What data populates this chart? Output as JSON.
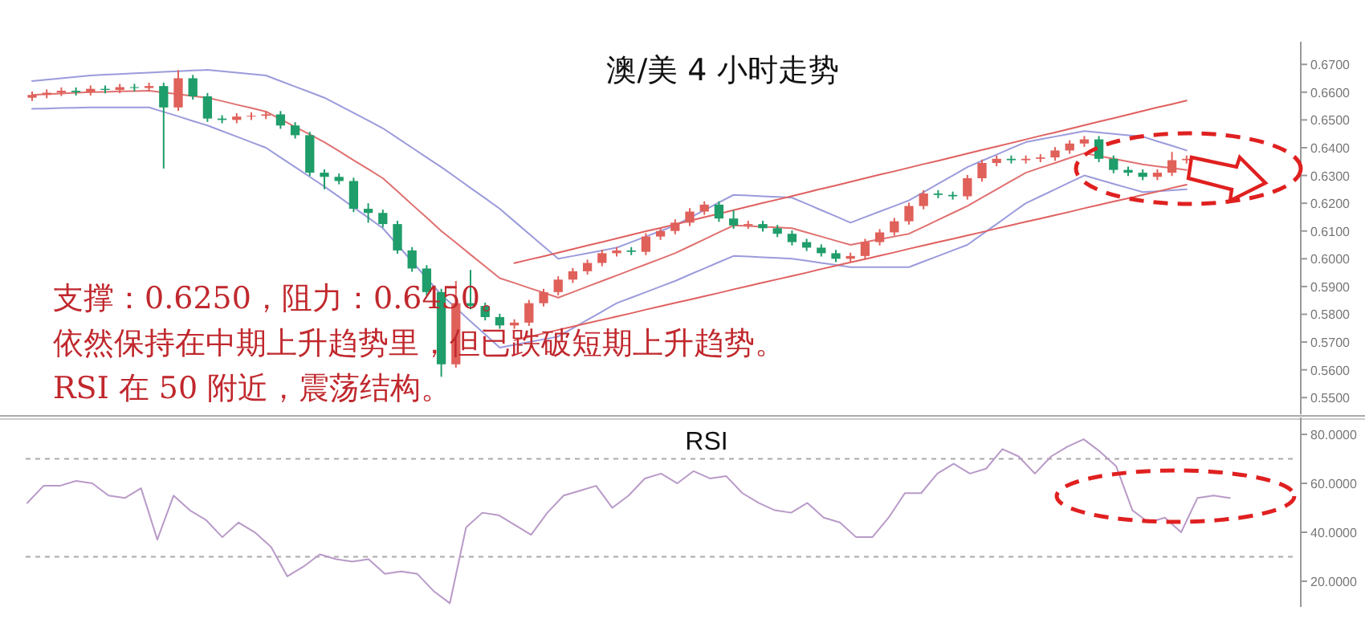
{
  "chart_data": [
    {
      "type": "candlestick",
      "title": "澳/美 4 小时走势",
      "tick_labels": "y",
      "categories": [
        null,
        null,
        null,
        null,
        null,
        null,
        null,
        null,
        null,
        null,
        null,
        null,
        null,
        null,
        null,
        null,
        null,
        null,
        null,
        null,
        null,
        null,
        null,
        null,
        null,
        null,
        null,
        null,
        null,
        null,
        null,
        null,
        null,
        null,
        null,
        null,
        null,
        null,
        null,
        null,
        null,
        null,
        null,
        null,
        null,
        null,
        null,
        null,
        null,
        null,
        null,
        null,
        null,
        null,
        null,
        null,
        null,
        null,
        null,
        null,
        null,
        null,
        null,
        null,
        null,
        null,
        null,
        null,
        null,
        null,
        null,
        null,
        null,
        null,
        null,
        null,
        null,
        null,
        null,
        null
      ],
      "ohlc": [
        [
          0.658,
          0.6602,
          0.6568,
          0.659
        ],
        [
          0.659,
          0.661,
          0.6578,
          0.6598
        ],
        [
          0.6598,
          0.6617,
          0.6586,
          0.6605
        ],
        [
          0.6605,
          0.6617,
          0.6588,
          0.66
        ],
        [
          0.66,
          0.6624,
          0.6588,
          0.6612
        ],
        [
          0.6612,
          0.6624,
          0.6596,
          0.6608
        ],
        [
          0.6608,
          0.663,
          0.6596,
          0.6618
        ],
        [
          0.6618,
          0.663,
          0.6603,
          0.6615
        ],
        [
          0.6615,
          0.6634,
          0.6603,
          0.6622
        ],
        [
          0.6622,
          0.6634,
          0.6325,
          0.6545
        ],
        [
          0.6545,
          0.668,
          0.6533,
          0.665
        ],
        [
          0.665,
          0.6662,
          0.6573,
          0.6585
        ],
        [
          0.6585,
          0.6597,
          0.6493,
          0.6505
        ],
        [
          0.6505,
          0.6517,
          0.6488,
          0.65
        ],
        [
          0.65,
          0.6524,
          0.6488,
          0.6512
        ],
        [
          0.6512,
          0.6527,
          0.65,
          0.6515
        ],
        [
          0.6515,
          0.6532,
          0.6503,
          0.652
        ],
        [
          0.652,
          0.6532,
          0.6468,
          0.648
        ],
        [
          0.648,
          0.6492,
          0.6433,
          0.6445
        ],
        [
          0.6445,
          0.6457,
          0.6298,
          0.631
        ],
        [
          0.631,
          0.6322,
          0.625,
          0.6295
        ],
        [
          0.6295,
          0.6307,
          0.6268,
          0.628
        ],
        [
          0.628,
          0.6292,
          0.6168,
          0.618
        ],
        [
          0.618,
          0.62,
          0.613,
          0.6165
        ],
        [
          0.6165,
          0.6177,
          0.6113,
          0.6125
        ],
        [
          0.6125,
          0.6137,
          0.6018,
          0.603
        ],
        [
          0.603,
          0.6042,
          0.5953,
          0.5965
        ],
        [
          0.5965,
          0.5977,
          0.5868,
          0.588
        ],
        [
          0.588,
          0.5892,
          0.5575,
          0.562
        ],
        [
          0.562,
          0.592,
          0.5608,
          0.584
        ],
        [
          0.584,
          0.596,
          0.5818,
          0.583
        ],
        [
          0.583,
          0.5842,
          0.5778,
          0.579
        ],
        [
          0.579,
          0.5802,
          0.5748,
          0.576
        ],
        [
          0.576,
          0.5782,
          0.5748,
          0.577
        ],
        [
          0.577,
          0.5852,
          0.5758,
          0.584
        ],
        [
          0.584,
          0.5892,
          0.5828,
          0.588
        ],
        [
          0.588,
          0.5937,
          0.5868,
          0.5925
        ],
        [
          0.5925,
          0.5967,
          0.5913,
          0.5955
        ],
        [
          0.5955,
          0.5997,
          0.5943,
          0.5985
        ],
        [
          0.5985,
          0.6032,
          0.5973,
          0.602
        ],
        [
          0.602,
          0.6042,
          0.6008,
          0.603
        ],
        [
          0.603,
          0.6042,
          0.6013,
          0.6025
        ],
        [
          0.6025,
          0.6092,
          0.6013,
          0.608
        ],
        [
          0.608,
          0.6112,
          0.6068,
          0.61
        ],
        [
          0.61,
          0.6142,
          0.6088,
          0.613
        ],
        [
          0.613,
          0.6182,
          0.6118,
          0.617
        ],
        [
          0.617,
          0.6207,
          0.6158,
          0.6195
        ],
        [
          0.6195,
          0.6207,
          0.6133,
          0.6145
        ],
        [
          0.6145,
          0.6175,
          0.6108,
          0.612
        ],
        [
          0.612,
          0.6137,
          0.6108,
          0.6125
        ],
        [
          0.6125,
          0.6137,
          0.6098,
          0.611
        ],
        [
          0.611,
          0.6122,
          0.6078,
          0.609
        ],
        [
          0.609,
          0.6102,
          0.6048,
          0.606
        ],
        [
          0.606,
          0.6072,
          0.6028,
          0.604
        ],
        [
          0.604,
          0.6052,
          0.6008,
          0.602
        ],
        [
          0.602,
          0.6032,
          0.5988,
          0.6
        ],
        [
          0.6,
          0.6022,
          0.5988,
          0.601
        ],
        [
          0.601,
          0.6072,
          0.5998,
          0.606
        ],
        [
          0.606,
          0.6107,
          0.6048,
          0.6095
        ],
        [
          0.6095,
          0.6147,
          0.6083,
          0.6135
        ],
        [
          0.6135,
          0.6202,
          0.6123,
          0.619
        ],
        [
          0.619,
          0.6247,
          0.6178,
          0.6235
        ],
        [
          0.6235,
          0.6247,
          0.6218,
          0.623
        ],
        [
          0.623,
          0.6242,
          0.6213,
          0.6225
        ],
        [
          0.6225,
          0.6302,
          0.6213,
          0.629
        ],
        [
          0.629,
          0.6357,
          0.6278,
          0.6345
        ],
        [
          0.6345,
          0.6372,
          0.6333,
          0.636
        ],
        [
          0.636,
          0.6372,
          0.6343,
          0.6355
        ],
        [
          0.6355,
          0.6372,
          0.6343,
          0.636
        ],
        [
          0.636,
          0.6377,
          0.6348,
          0.6365
        ],
        [
          0.6365,
          0.6402,
          0.6353,
          0.639
        ],
        [
          0.639,
          0.6427,
          0.6378,
          0.6415
        ],
        [
          0.6415,
          0.6442,
          0.6403,
          0.643
        ],
        [
          0.643,
          0.6442,
          0.6348,
          0.636
        ],
        [
          0.636,
          0.6372,
          0.6308,
          0.632
        ],
        [
          0.632,
          0.6332,
          0.6298,
          0.631
        ],
        [
          0.631,
          0.6322,
          0.6283,
          0.6295
        ],
        [
          0.6295,
          0.6322,
          0.6283,
          0.631
        ],
        [
          0.631,
          0.6385,
          0.6298,
          0.6355
        ],
        [
          0.6355,
          0.6372,
          0.6343,
          0.636
        ]
      ],
      "series": [
        {
          "type": "line",
          "color": "#e07070",
          "values": [
            0.659,
            0.6593,
            0.6595,
            0.6598,
            0.66,
            0.6601,
            0.6603,
            0.6604,
            0.6605,
            0.6599,
            0.6593,
            0.6586,
            0.658,
            0.6568,
            0.6555,
            0.6543,
            0.653,
            0.6503,
            0.6475,
            0.6448,
            0.642,
            0.6388,
            0.6355,
            0.6323,
            0.629,
            0.6243,
            0.6195,
            0.6148,
            0.61,
            0.6058,
            0.6015,
            0.5973,
            0.593,
            0.5913,
            0.5895,
            0.5878,
            0.586,
            0.588,
            0.59,
            0.592,
            0.594,
            0.596,
            0.598,
            0.6,
            0.602,
            0.6045,
            0.607,
            0.6095,
            0.612,
            0.6118,
            0.6115,
            0.6113,
            0.611,
            0.6095,
            0.608,
            0.6065,
            0.605,
            0.606,
            0.607,
            0.608,
            0.609,
            0.6115,
            0.614,
            0.6165,
            0.619,
            0.622,
            0.625,
            0.628,
            0.631,
            0.6328,
            0.6345,
            0.6363,
            0.638,
            0.637,
            0.636,
            0.635,
            0.634,
            0.6333,
            0.6327,
            0.632
          ]
        },
        {
          "type": "line",
          "color": "#9b9bdc",
          "values": [
            0.664,
            0.6645,
            0.665,
            0.6655,
            0.666,
            0.6663,
            0.6665,
            0.6668,
            0.667,
            0.6673,
            0.6675,
            0.6678,
            0.668,
            0.6675,
            0.667,
            0.6665,
            0.666,
            0.664,
            0.662,
            0.66,
            0.658,
            0.6553,
            0.6525,
            0.6498,
            0.647,
            0.6435,
            0.64,
            0.6365,
            0.633,
            0.6293,
            0.6255,
            0.6218,
            0.618,
            0.6135,
            0.609,
            0.6045,
            0.6,
            0.601,
            0.602,
            0.603,
            0.604,
            0.606,
            0.608,
            0.61,
            0.612,
            0.6148,
            0.6175,
            0.6203,
            0.623,
            0.6228,
            0.6225,
            0.6223,
            0.622,
            0.6198,
            0.6175,
            0.6153,
            0.613,
            0.615,
            0.617,
            0.619,
            0.621,
            0.624,
            0.627,
            0.63,
            0.633,
            0.6353,
            0.6375,
            0.6398,
            0.642,
            0.643,
            0.644,
            0.645,
            0.646,
            0.6455,
            0.645,
            0.6445,
            0.644,
            0.6423,
            0.6407,
            0.639
          ]
        },
        {
          "type": "line",
          "color": "#9b9bdc",
          "values": [
            0.654,
            0.6541,
            0.6543,
            0.6544,
            0.6545,
            0.6545,
            0.6545,
            0.6545,
            0.6545,
            0.6529,
            0.6513,
            0.6496,
            0.648,
            0.646,
            0.644,
            0.642,
            0.64,
            0.6365,
            0.633,
            0.6295,
            0.626,
            0.6223,
            0.6185,
            0.6148,
            0.611,
            0.605,
            0.599,
            0.593,
            0.587,
            0.5823,
            0.5775,
            0.5728,
            0.568,
            0.569,
            0.57,
            0.571,
            0.572,
            0.575,
            0.578,
            0.581,
            0.584,
            0.586,
            0.588,
            0.59,
            0.592,
            0.5943,
            0.5965,
            0.5988,
            0.601,
            0.6008,
            0.6005,
            0.6003,
            0.6,
            0.5993,
            0.5985,
            0.5978,
            0.597,
            0.597,
            0.597,
            0.597,
            0.597,
            0.599,
            0.601,
            0.603,
            0.605,
            0.6088,
            0.6125,
            0.6163,
            0.62,
            0.6225,
            0.625,
            0.6275,
            0.63,
            0.6285,
            0.627,
            0.6255,
            0.624,
            0.6243,
            0.6247,
            0.625
          ]
        },
        {
          "type": "line",
          "color": "#e06060",
          "values": [
            null,
            null,
            null,
            null,
            null,
            null,
            null,
            null,
            null,
            null,
            null,
            null,
            null,
            null,
            null,
            null,
            null,
            null,
            null,
            null,
            null,
            null,
            null,
            null,
            null,
            null,
            null,
            null,
            null,
            null,
            null,
            null,
            null,
            0.5984,
            0.5997,
            0.6009,
            0.6022,
            0.6035,
            0.6048,
            0.606,
            0.6073,
            0.6086,
            0.6099,
            0.6111,
            0.6124,
            0.6137,
            0.615,
            0.6162,
            0.6175,
            0.6188,
            0.6201,
            0.6213,
            0.6226,
            0.6239,
            0.6252,
            0.6264,
            0.6277,
            0.629,
            0.6303,
            0.6315,
            0.6328,
            0.6341,
            0.6353,
            0.6366,
            0.6379,
            0.6392,
            0.6404,
            0.6417,
            0.643,
            0.6443,
            0.6455,
            0.6468,
            0.6481,
            0.6494,
            0.6506,
            0.6519,
            0.6532,
            0.6545,
            0.6557,
            0.657
          ]
        },
        {
          "type": "line",
          "color": "#e06060",
          "values": [
            null,
            null,
            null,
            null,
            null,
            null,
            null,
            null,
            null,
            null,
            null,
            null,
            null,
            null,
            null,
            null,
            null,
            null,
            null,
            null,
            null,
            null,
            null,
            null,
            null,
            null,
            null,
            null,
            null,
            null,
            null,
            null,
            null,
            0.5707,
            0.5719,
            0.5731,
            0.5744,
            0.5756,
            0.5768,
            0.578,
            0.5792,
            0.5804,
            0.5817,
            0.5829,
            0.5841,
            0.5853,
            0.5865,
            0.5877,
            0.589,
            0.5902,
            0.5914,
            0.5926,
            0.5938,
            0.595,
            0.5963,
            0.5975,
            0.5987,
            0.5999,
            0.6011,
            0.6023,
            0.6036,
            0.6048,
            0.606,
            0.6072,
            0.6084,
            0.6096,
            0.6109,
            0.6121,
            0.6133,
            0.6145,
            0.6157,
            0.6169,
            0.6182,
            0.6194,
            0.6206,
            0.6218,
            0.623,
            0.6242,
            0.6255,
            0.6267
          ]
        }
      ],
      "ylim": [
        0.544,
        0.677
      ],
      "yticks": [
        {
          "value": 0.55,
          "label": "0.5500"
        },
        {
          "value": 0.56,
          "label": "0.5600"
        },
        {
          "value": 0.57,
          "label": "0.5700"
        },
        {
          "value": 0.58,
          "label": "0.5800"
        },
        {
          "value": 0.59,
          "label": "0.5900"
        },
        {
          "value": 0.6,
          "label": "0.6000"
        },
        {
          "value": 0.61,
          "label": "0.6100"
        },
        {
          "value": 0.62,
          "label": "0.6200"
        },
        {
          "value": 0.63,
          "label": "0.6300"
        },
        {
          "value": 0.64,
          "label": "0.6400"
        },
        {
          "value": 0.65,
          "label": "0.6500"
        },
        {
          "value": 0.66,
          "label": "0.6600"
        },
        {
          "value": 0.67,
          "label": "0.6700"
        }
      ],
      "annotations": [
        "支撑：0.6250，阻力：0.6450。",
        "依然保持在中期上升趋势里，但已跌破短期上升趋势。",
        "RSI 在 50 附近，震荡结构。"
      ]
    },
    {
      "type": "line",
      "title": "RSI",
      "tick_labels": "y",
      "color": "#b99ac8",
      "categories": [
        null,
        null,
        null,
        null,
        null,
        null,
        null,
        null,
        null,
        null,
        null,
        null,
        null,
        null,
        null,
        null,
        null,
        null,
        null,
        null,
        null,
        null,
        null,
        null,
        null,
        null,
        null,
        null,
        null,
        null,
        null,
        null,
        null,
        null,
        null,
        null,
        null,
        null,
        null,
        null,
        null,
        null,
        null,
        null,
        null,
        null,
        null,
        null,
        null,
        null,
        null,
        null,
        null,
        null,
        null,
        null,
        null,
        null,
        null,
        null,
        null,
        null,
        null,
        null,
        null,
        null,
        null,
        null,
        null,
        null,
        null,
        null,
        null,
        null,
        null
      ],
      "values": [
        52,
        59,
        59,
        61,
        60,
        55,
        54,
        58,
        37,
        55,
        49,
        45,
        38,
        44,
        40,
        34,
        22,
        26,
        31,
        29,
        28,
        29,
        23,
        24,
        23,
        16,
        11,
        42,
        48,
        47,
        43,
        39,
        48,
        55,
        57,
        59,
        50,
        55,
        62,
        64,
        60,
        65,
        62,
        63,
        56,
        52,
        49,
        48,
        52,
        46,
        44,
        38,
        38,
        46,
        56,
        56,
        64,
        68,
        64,
        66,
        74,
        71,
        64,
        71,
        75,
        78,
        73,
        67,
        49,
        44,
        46,
        40,
        54,
        55,
        54
      ],
      "ylim": [
        9.5,
        85.6
      ],
      "yticks": [
        {
          "value": 20,
          "label": "20.0000"
        },
        {
          "value": 40,
          "label": "40.0000"
        },
        {
          "value": 60,
          "label": "60.0000"
        },
        {
          "value": 80,
          "label": "80.0000"
        }
      ],
      "ref_lines": [
        {
          "axis": "y",
          "value": 70,
          "line_style": "dashed",
          "color": "#aaaaaa"
        },
        {
          "axis": "y",
          "value": 30,
          "line_style": "dashed",
          "color": "#aaaaaa"
        }
      ]
    }
  ]
}
